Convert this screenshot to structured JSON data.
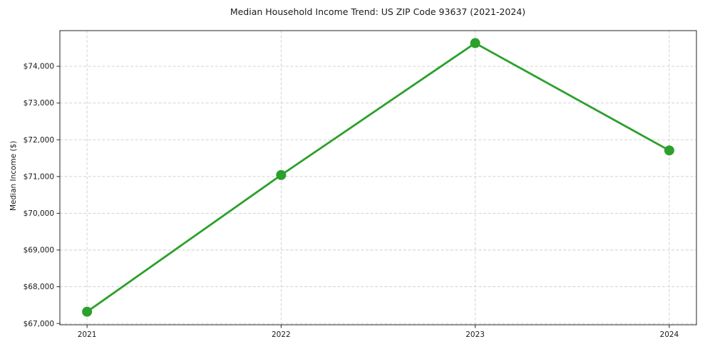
{
  "chart_data": {
    "type": "line",
    "title": "Median Household Income Trend: US ZIP Code 93637 (2021-2024)",
    "xlabel": "",
    "ylabel": "Median Income ($)",
    "x": [
      2021,
      2022,
      2023,
      2024
    ],
    "series": [
      {
        "name": "Median household income",
        "values": [
          67320,
          71040,
          74630,
          71710
        ]
      }
    ],
    "xticks": {
      "values": [
        2021,
        2022,
        2023,
        2024
      ],
      "labels": [
        "2021",
        "2022",
        "2023",
        "2024"
      ]
    },
    "yticks": {
      "values": [
        67000,
        68000,
        69000,
        70000,
        71000,
        72000,
        73000,
        74000
      ],
      "labels": [
        "$67,000",
        "$68,000",
        "$69,000",
        "$70,000",
        "$71,000",
        "$72,000",
        "$73,000",
        "$74,000"
      ]
    },
    "xlim": [
      2020.86,
      2024.14
    ],
    "ylim": [
      66965,
      74970
    ],
    "grid": true,
    "grid_style": "dashed",
    "legend": "none",
    "marker": "circle",
    "colors": {
      "line": "#2ca02c",
      "marker": "#2ca02c",
      "grid": "#cdcdcd",
      "axis": "#262626",
      "text": "#1a1a1a",
      "background": "#ffffff"
    }
  }
}
